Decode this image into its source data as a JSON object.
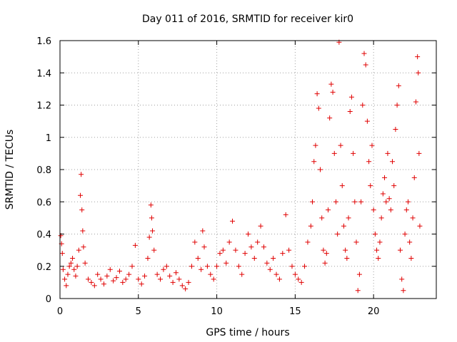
{
  "chart_data": {
    "type": "scatter",
    "title": "Day 011 of 2016, SRMTID for receiver kir0",
    "xlabel": "GPS time / hours",
    "ylabel": "SRMTID / TECUs",
    "xlim": [
      0,
      24
    ],
    "ylim": [
      0,
      1.6
    ],
    "xticks": [
      0,
      5,
      10,
      15,
      20
    ],
    "xtick_labels": [
      "0",
      "5",
      "10",
      "15",
      "20"
    ],
    "yticks": [
      0,
      0.2,
      0.4,
      0.6,
      0.8,
      1,
      1.2,
      1.4,
      1.6
    ],
    "ytick_labels": [
      "0",
      "0.2",
      "0.4",
      "0.6",
      "0.8",
      "1",
      "1.2",
      "1.4",
      "1.6"
    ],
    "grid": true,
    "marker": "+",
    "color": "#e00000",
    "series": [
      {
        "name": "SRMTID",
        "points": [
          [
            0.05,
            0.39
          ],
          [
            0.1,
            0.34
          ],
          [
            0.15,
            0.28
          ],
          [
            0.2,
            0.18
          ],
          [
            0.3,
            0.12
          ],
          [
            0.4,
            0.08
          ],
          [
            0.5,
            0.15
          ],
          [
            0.6,
            0.2
          ],
          [
            0.7,
            0.22
          ],
          [
            0.8,
            0.25
          ],
          [
            0.9,
            0.18
          ],
          [
            1.0,
            0.14
          ],
          [
            1.1,
            0.2
          ],
          [
            1.2,
            0.3
          ],
          [
            1.3,
            0.64
          ],
          [
            1.35,
            0.77
          ],
          [
            1.4,
            0.55
          ],
          [
            1.45,
            0.42
          ],
          [
            1.5,
            0.32
          ],
          [
            1.6,
            0.22
          ],
          [
            1.8,
            0.12
          ],
          [
            2.0,
            0.1
          ],
          [
            2.2,
            0.08
          ],
          [
            2.4,
            0.15
          ],
          [
            2.6,
            0.12
          ],
          [
            2.8,
            0.09
          ],
          [
            3.0,
            0.14
          ],
          [
            3.2,
            0.18
          ],
          [
            3.4,
            0.11
          ],
          [
            3.6,
            0.13
          ],
          [
            3.8,
            0.17
          ],
          [
            4.0,
            0.1
          ],
          [
            4.2,
            0.12
          ],
          [
            4.4,
            0.15
          ],
          [
            4.6,
            0.2
          ],
          [
            4.8,
            0.33
          ],
          [
            5.0,
            0.12
          ],
          [
            5.2,
            0.09
          ],
          [
            5.4,
            0.14
          ],
          [
            5.6,
            0.25
          ],
          [
            5.7,
            0.38
          ],
          [
            5.8,
            0.58
          ],
          [
            5.85,
            0.5
          ],
          [
            5.9,
            0.42
          ],
          [
            6.0,
            0.3
          ],
          [
            6.2,
            0.15
          ],
          [
            6.4,
            0.12
          ],
          [
            6.6,
            0.18
          ],
          [
            6.8,
            0.2
          ],
          [
            7.0,
            0.14
          ],
          [
            7.2,
            0.1
          ],
          [
            7.4,
            0.16
          ],
          [
            7.6,
            0.12
          ],
          [
            7.8,
            0.08
          ],
          [
            8.0,
            0.06
          ],
          [
            8.2,
            0.1
          ],
          [
            8.4,
            0.2
          ],
          [
            8.6,
            0.35
          ],
          [
            8.8,
            0.25
          ],
          [
            9.0,
            0.18
          ],
          [
            9.1,
            0.42
          ],
          [
            9.2,
            0.32
          ],
          [
            9.4,
            0.2
          ],
          [
            9.6,
            0.15
          ],
          [
            9.8,
            0.12
          ],
          [
            10.0,
            0.2
          ],
          [
            10.2,
            0.28
          ],
          [
            10.4,
            0.3
          ],
          [
            10.6,
            0.22
          ],
          [
            10.8,
            0.35
          ],
          [
            11.0,
            0.48
          ],
          [
            11.2,
            0.3
          ],
          [
            11.4,
            0.2
          ],
          [
            11.6,
            0.15
          ],
          [
            11.8,
            0.28
          ],
          [
            12.0,
            0.4
          ],
          [
            12.2,
            0.32
          ],
          [
            12.4,
            0.25
          ],
          [
            12.6,
            0.35
          ],
          [
            12.8,
            0.45
          ],
          [
            13.0,
            0.32
          ],
          [
            13.2,
            0.22
          ],
          [
            13.4,
            0.18
          ],
          [
            13.6,
            0.25
          ],
          [
            13.8,
            0.15
          ],
          [
            14.0,
            0.12
          ],
          [
            14.2,
            0.28
          ],
          [
            14.4,
            0.52
          ],
          [
            14.6,
            0.3
          ],
          [
            14.8,
            0.2
          ],
          [
            15.0,
            0.15
          ],
          [
            15.2,
            0.12
          ],
          [
            15.4,
            0.1
          ],
          [
            15.6,
            0.2
          ],
          [
            15.8,
            0.35
          ],
          [
            16.0,
            0.45
          ],
          [
            16.1,
            0.6
          ],
          [
            16.2,
            0.85
          ],
          [
            16.3,
            0.95
          ],
          [
            16.4,
            1.27
          ],
          [
            16.5,
            1.18
          ],
          [
            16.6,
            0.8
          ],
          [
            16.7,
            0.5
          ],
          [
            16.8,
            0.3
          ],
          [
            16.9,
            0.22
          ],
          [
            17.0,
            0.28
          ],
          [
            17.1,
            0.55
          ],
          [
            17.2,
            1.12
          ],
          [
            17.3,
            1.33
          ],
          [
            17.4,
            1.28
          ],
          [
            17.5,
            0.9
          ],
          [
            17.6,
            0.6
          ],
          [
            17.7,
            0.4
          ],
          [
            17.8,
            1.59
          ],
          [
            17.9,
            0.95
          ],
          [
            18.0,
            0.7
          ],
          [
            18.1,
            0.45
          ],
          [
            18.2,
            0.3
          ],
          [
            18.3,
            0.25
          ],
          [
            18.4,
            0.5
          ],
          [
            18.5,
            1.16
          ],
          [
            18.6,
            1.25
          ],
          [
            18.7,
            0.9
          ],
          [
            18.8,
            0.6
          ],
          [
            18.9,
            0.35
          ],
          [
            19.0,
            0.05
          ],
          [
            19.1,
            0.15
          ],
          [
            19.2,
            0.6
          ],
          [
            19.3,
            1.2
          ],
          [
            19.4,
            1.52
          ],
          [
            19.5,
            1.45
          ],
          [
            19.6,
            1.1
          ],
          [
            19.7,
            0.85
          ],
          [
            19.8,
            0.7
          ],
          [
            19.9,
            0.95
          ],
          [
            20.0,
            0.55
          ],
          [
            20.1,
            0.4
          ],
          [
            20.2,
            0.3
          ],
          [
            20.3,
            0.25
          ],
          [
            20.4,
            0.35
          ],
          [
            20.5,
            0.5
          ],
          [
            20.6,
            0.65
          ],
          [
            20.7,
            0.75
          ],
          [
            20.8,
            0.6
          ],
          [
            20.9,
            0.9
          ],
          [
            21.0,
            0.62
          ],
          [
            21.1,
            0.55
          ],
          [
            21.2,
            0.85
          ],
          [
            21.3,
            0.7
          ],
          [
            21.4,
            1.05
          ],
          [
            21.5,
            1.2
          ],
          [
            21.6,
            1.32
          ],
          [
            21.7,
            0.3
          ],
          [
            21.8,
            0.12
          ],
          [
            21.9,
            0.05
          ],
          [
            22.0,
            0.4
          ],
          [
            22.1,
            0.55
          ],
          [
            22.2,
            0.6
          ],
          [
            22.3,
            0.35
          ],
          [
            22.4,
            0.25
          ],
          [
            22.5,
            0.5
          ],
          [
            22.6,
            0.75
          ],
          [
            22.7,
            1.22
          ],
          [
            22.8,
            1.5
          ],
          [
            22.85,
            1.4
          ],
          [
            22.9,
            0.9
          ],
          [
            22.95,
            0.45
          ]
        ]
      }
    ]
  }
}
